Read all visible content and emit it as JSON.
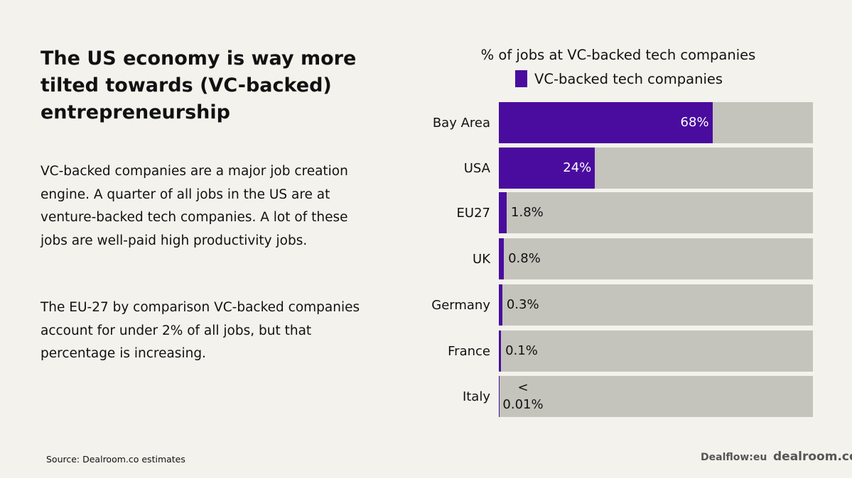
{
  "left": {
    "title": "The US economy is way more tilted towards (VC-backed) entrepreneurship",
    "paragraph1": "VC-backed companies are a major job creation engine. A quarter of all jobs in the US are at venture-backed tech companies. A lot of these jobs are well-paid high productivity jobs.",
    "paragraph2": "The EU-27 by comparison VC-backed companies account for under 2% of all jobs, but that percentage is increasing."
  },
  "chart_data": {
    "type": "bar",
    "orientation": "horizontal",
    "title": "% of jobs at VC-backed tech companies",
    "legend": [
      {
        "name": "VC-backed tech companies",
        "color": "#4a0c9e"
      }
    ],
    "categories": [
      "Bay Area",
      "USA",
      "EU27",
      "UK",
      "Germany",
      "France",
      "Italy"
    ],
    "values": [
      68,
      24,
      1.8,
      0.8,
      0.3,
      0.1,
      0.01
    ],
    "labels": [
      "68%",
      "24%",
      "1.8%",
      "0.8%",
      "0.3%",
      "0.1%",
      "< 0.01%"
    ],
    "fill_fraction": [
      0.68,
      0.306,
      0.025,
      0.016,
      0.011,
      0.007,
      0.002
    ],
    "xlim": [
      0,
      100
    ],
    "bar_color": "#4a0c9e",
    "track_color": "#c4c3bc"
  },
  "footer": {
    "source": "Source:  Dealroom.co estimates",
    "logo1": "Dealflow:eu",
    "logo2": "dealroom.co"
  }
}
